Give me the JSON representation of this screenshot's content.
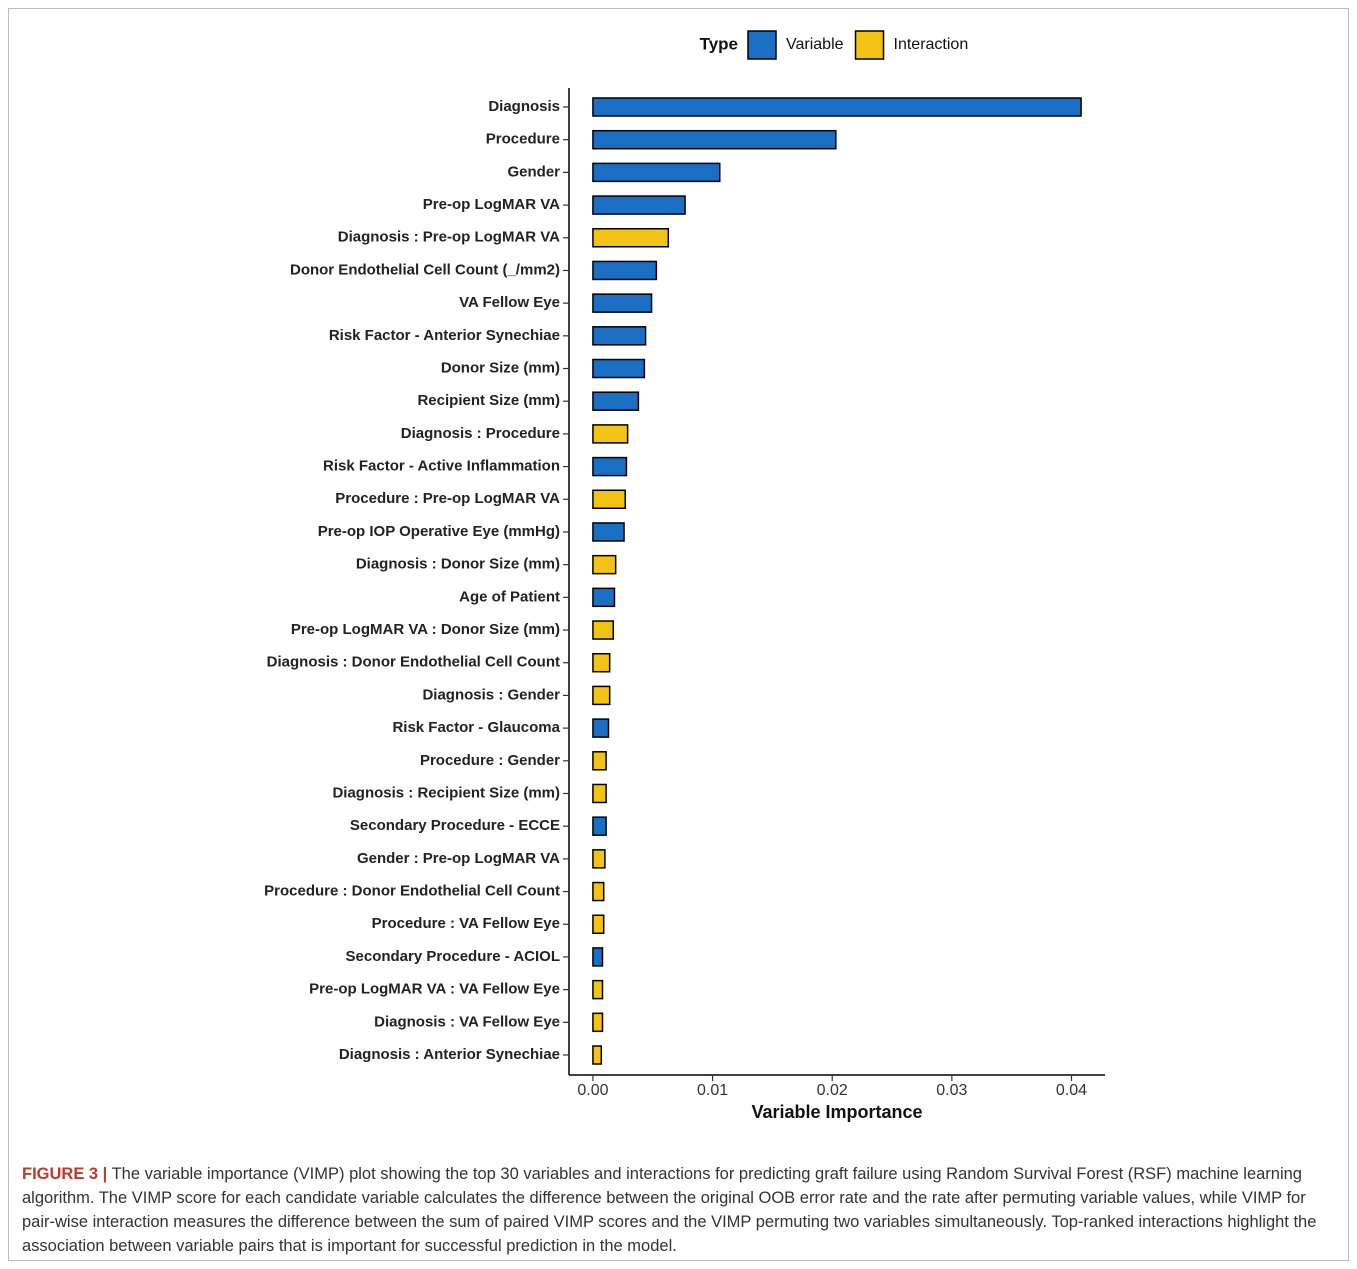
{
  "chart_data": {
    "type": "bar",
    "orientation": "horizontal",
    "x_label": "Variable Importance",
    "legend": {
      "title": "Type",
      "position": "top"
    },
    "categories": [
      "Diagnosis",
      "Procedure",
      "Gender",
      "Pre-op LogMAR VA",
      "Diagnosis : Pre-op LogMAR VA",
      "Donor Endothelial Cell Count (_/mm2)",
      "VA Fellow Eye",
      "Risk Factor - Anterior Synechiae",
      "Donor Size (mm)",
      "Recipient Size (mm)",
      "Diagnosis : Procedure",
      "Risk Factor - Active Inflammation",
      "Procedure : Pre-op LogMAR VA",
      "Pre-op IOP Operative Eye (mmHg)",
      "Diagnosis : Donor Size (mm)",
      "Age of Patient",
      "Pre-op LogMAR VA : Donor Size (mm)",
      "Diagnosis : Donor Endothelial Cell Count",
      "Diagnosis : Gender",
      "Risk Factor - Glaucoma",
      "Procedure : Gender",
      "Diagnosis : Recipient Size (mm)",
      "Secondary Procedure - ECCE",
      "Gender : Pre-op LogMAR VA",
      "Procedure : Donor Endothelial Cell Count",
      "Procedure : VA Fellow Eye",
      "Secondary Procedure - ACIOL",
      "Pre-op LogMAR VA : VA Fellow Eye",
      "Diagnosis : VA Fellow Eye",
      "Diagnosis : Anterior Synechiae"
    ],
    "series": [
      {
        "name": "Variable",
        "color": "#1a6fc4",
        "values": [
          0.0408,
          0.0203,
          0.0106,
          0.0077,
          null,
          0.0053,
          0.0049,
          0.0044,
          0.0043,
          0.0038,
          null,
          0.0028,
          null,
          0.0026,
          null,
          0.0018,
          null,
          null,
          null,
          0.0013,
          null,
          null,
          0.0011,
          null,
          null,
          null,
          0.0008,
          null,
          null,
          null
        ]
      },
      {
        "name": "Interaction",
        "color": "#f2c314",
        "values": [
          null,
          null,
          null,
          null,
          0.0063,
          null,
          null,
          null,
          null,
          null,
          0.0029,
          null,
          0.0027,
          null,
          0.0019,
          null,
          0.0017,
          0.0014,
          0.0014,
          null,
          0.0011,
          0.0011,
          null,
          0.001,
          0.0009,
          0.0009,
          null,
          0.0008,
          0.0008,
          0.0007
        ]
      }
    ],
    "xlim": [
      -0.002,
      0.0428
    ],
    "xticks": [
      {
        "value": 0,
        "label": "0.00"
      },
      0.01,
      0.02,
      0.03,
      0.04
    ]
  },
  "caption": {
    "label": "FIGURE 3 |",
    "text": " The variable importance (VIMP) plot showing the top 30 variables and interactions for predicting graft failure using Random Survival Forest (RSF) machine learning algorithm. The VIMP score for each candidate variable calculates the difference between the original OOB error rate and the rate after permuting variable values, while VIMP for pair-wise interaction measures the difference between the sum of paired VIMP scores and the VIMP permuting two variables simultaneously. Top-ranked interactions highlight the association between variable pairs that is important for successful prediction in the model."
  }
}
